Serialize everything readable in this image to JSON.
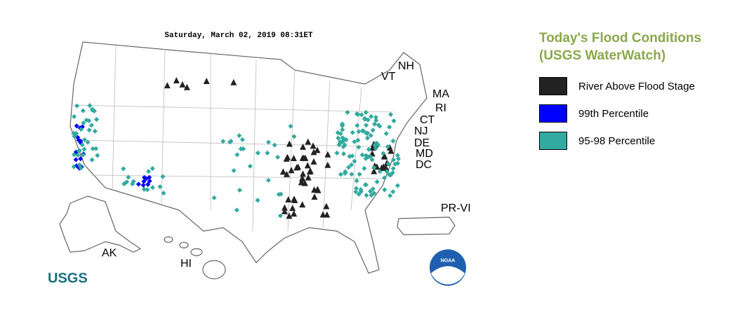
{
  "map": {
    "timestamp": "Saturday, March 02, 2019 08:31ET",
    "state_labels": [
      "NH",
      "VT",
      "MA",
      "RI",
      "CT",
      "NJ",
      "DE",
      "MD",
      "DC",
      "AK",
      "HI",
      "PR-VI"
    ],
    "logos": {
      "usgs": "USGS",
      "noaa": "NOAA"
    }
  },
  "legend": {
    "title": [
      "Today's Flood Conditions",
      "(USGS WaterWatch)"
    ],
    "items": [
      {
        "label": "River Above Flood Stage",
        "color": "#222222"
      },
      {
        "label": "99th Percentile",
        "color": "#0000ff"
      },
      {
        "label": "95-98 Percentile",
        "color": "#33aaa0"
      }
    ]
  }
}
